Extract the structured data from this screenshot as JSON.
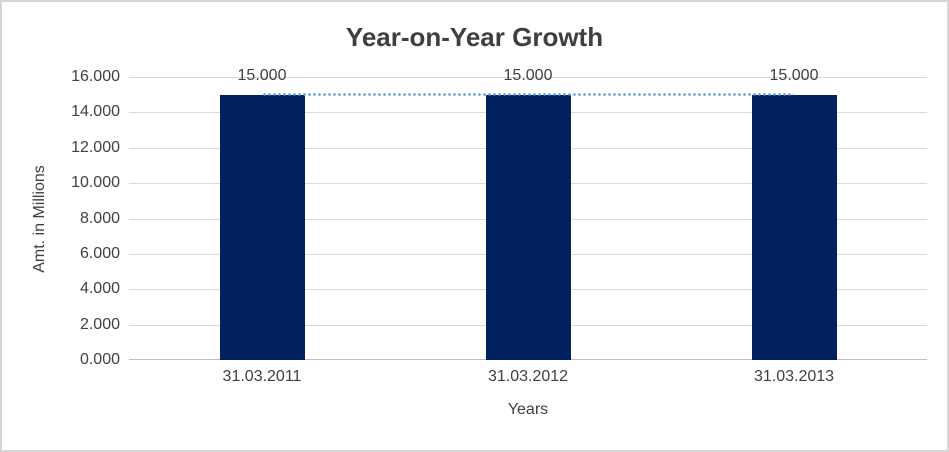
{
  "chart_data": {
    "type": "bar",
    "title": "Year-on-Year Growth",
    "xlabel": "Years",
    "ylabel": "Amt. in Millions",
    "categories": [
      "31.03.2011",
      "31.03.2012",
      "31.03.2013"
    ],
    "values": [
      15.0,
      15.0,
      15.0
    ],
    "data_labels": [
      "15.000",
      "15.000",
      "15.000"
    ],
    "ytick_labels": [
      "16.000",
      "14.000",
      "12.000",
      "10.000",
      "8.000",
      "6.000",
      "4.000",
      "2.000",
      "0.000"
    ],
    "ylim": [
      0,
      16
    ],
    "ytick_step": 2,
    "grid": true,
    "legend": false,
    "trendline": {
      "style": "dotted",
      "y": 15.0,
      "color": "#5b9bd5"
    },
    "colors": {
      "bar": "#002060",
      "trendline": "#5b9bd5",
      "gridline": "#d9d9d9",
      "axis_line": "#bfbfbf",
      "text": "#404040",
      "title": "#3f3f3f",
      "frame_border": "#d6d6d6",
      "background": "#ffffff"
    }
  }
}
